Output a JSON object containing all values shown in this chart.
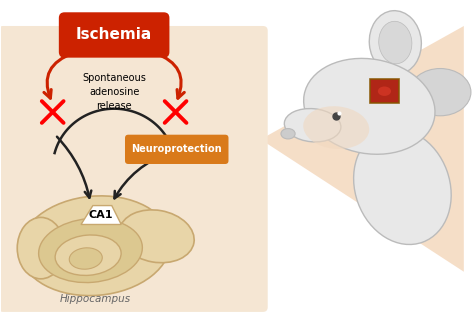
{
  "bg_color": "#ffffff",
  "left_panel_color": "#f5e6d3",
  "left_panel_border": "#e8d0b0",
  "ischemia_box_color": "#cc2200",
  "ischemia_text": "Ischemia",
  "ischemia_text_color": "#ffffff",
  "spontaneous_text": "Spontaneous\nadenosine\nrelease",
  "neuroprotection_text": "Neuroprotection",
  "neuroprotection_box_color": "#d97a1a",
  "neuroprotection_text_color": "#ffffff",
  "ca1_text": "CA1",
  "hippocampus_text": "Hippocampus",
  "arrow_color_red": "#cc2200",
  "arrow_color_black": "#222222",
  "x_color": "#cc2200",
  "hippo_outer_color": "#e8d5a8",
  "hippo_edge_color": "#c8a870",
  "hippo_inner_color": "#d4b880",
  "mouse_body_color": "#e8e8e8",
  "mouse_edge_color": "#bbbbbb",
  "beam_color": "#f2d0b0",
  "brain_box_color": "#aa1100",
  "brain_box_edge": "#885500",
  "figsize": [
    4.74,
    3.19
  ],
  "dpi": 100
}
